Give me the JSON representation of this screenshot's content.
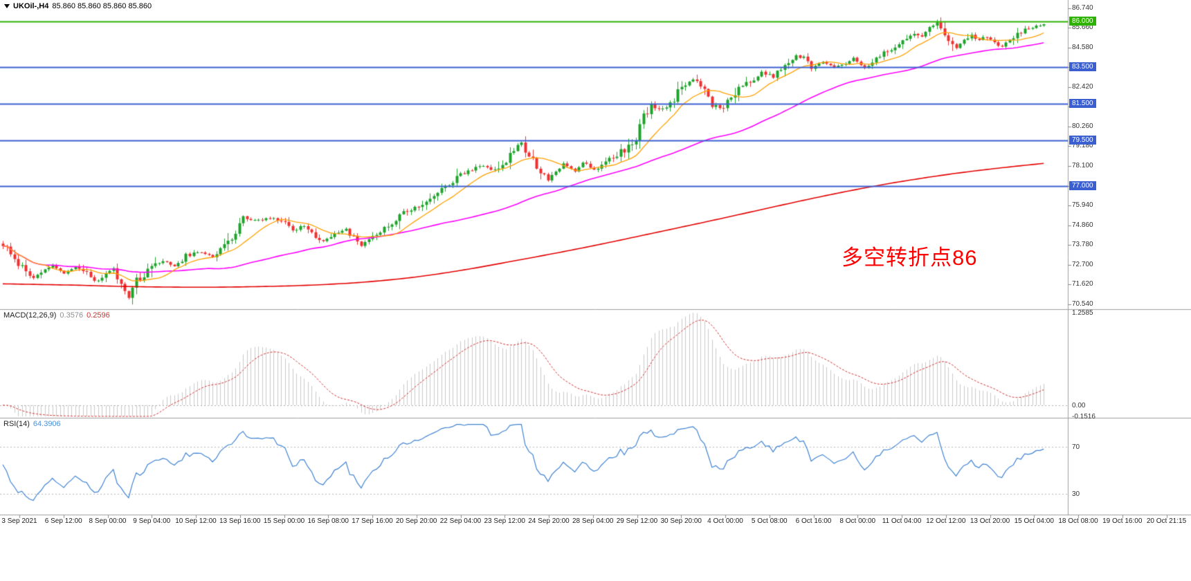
{
  "colors": {
    "up": "#1ea32b",
    "down": "#ef3030",
    "ma_fast": "#ffa000",
    "ma_mid": "#ff00ff",
    "ma_slow": "#e40000",
    "hline_blue": "#3b5fd0",
    "hline_green": "#2db200",
    "macd_hist": "#c9c9c9",
    "macd_signal": "#d23030",
    "rsi_line": "#3e82d2",
    "panel_divider": "#9e9e9e",
    "scale_text": "#333333",
    "annotation": "#ff0000",
    "label_box_blue": "#3b5fd0",
    "label_box_green": "#2db200"
  },
  "header": {
    "symbol": "UKOil-,H4",
    "quotes": "85.860 85.860 85.860 85.860"
  },
  "annotation": {
    "text": "多空转折点86"
  },
  "chart_data": [
    {
      "type": "candlestick",
      "title": "UKOil-,H4",
      "symbol": "UKOil-",
      "timeframe": "H4",
      "last_price": 85.86,
      "n_bars": 274,
      "ylim": [
        70.3,
        86.96
      ],
      "y_ticks": [
        "86.740",
        "85.660",
        "84.580",
        "83.500",
        "82.420",
        "81.340",
        "80.260",
        "79.180",
        "78.100",
        "77.020",
        "75.940",
        "74.860",
        "73.780",
        "72.700",
        "71.620",
        "70.540"
      ],
      "hlines": [
        {
          "price": 86.0,
          "label": "86.000",
          "color_key": "green"
        },
        {
          "price": 83.5,
          "label": "83.500",
          "color_key": "blue"
        },
        {
          "price": 81.5,
          "label": "81.500",
          "color_key": "blue"
        },
        {
          "price": 79.5,
          "label": "79.500",
          "color_key": "blue"
        },
        {
          "price": 77.0,
          "label": "77.000",
          "color_key": "blue"
        }
      ],
      "moving_averages": [
        {
          "name": "fast",
          "color_key": "ma_fast"
        },
        {
          "name": "medium",
          "color_key": "ma_mid"
        },
        {
          "name": "slow",
          "color_key": "ma_slow"
        }
      ],
      "price_path": [
        [
          0,
          73.85
        ],
        [
          2,
          73.4
        ],
        [
          4,
          72.7
        ],
        [
          6,
          72.25
        ],
        [
          8,
          71.95
        ],
        [
          10,
          72.3
        ],
        [
          13,
          72.65
        ],
        [
          16,
          72.2
        ],
        [
          19,
          72.55
        ],
        [
          21,
          72.4
        ],
        [
          24,
          71.75
        ],
        [
          27,
          72.15
        ],
        [
          29,
          72.5
        ],
        [
          31,
          71.6
        ],
        [
          33,
          70.85
        ],
        [
          35,
          71.8
        ],
        [
          38,
          72.4
        ],
        [
          42,
          72.9
        ],
        [
          45,
          72.6
        ],
        [
          48,
          73.15
        ],
        [
          52,
          73.4
        ],
        [
          55,
          73.15
        ],
        [
          58,
          73.85
        ],
        [
          61,
          74.3
        ],
        [
          63,
          75.35
        ],
        [
          65,
          75.1
        ],
        [
          68,
          75.2
        ],
        [
          71,
          75.3
        ],
        [
          73,
          75.1
        ],
        [
          76,
          74.55
        ],
        [
          79,
          74.85
        ],
        [
          82,
          74.25
        ],
        [
          84,
          73.95
        ],
        [
          87,
          74.4
        ],
        [
          90,
          74.6
        ],
        [
          92,
          74.15
        ],
        [
          94,
          73.75
        ],
        [
          97,
          74.35
        ],
        [
          100,
          74.7
        ],
        [
          103,
          75.15
        ],
        [
          105,
          75.5
        ],
        [
          108,
          75.85
        ],
        [
          111,
          76.15
        ],
        [
          115,
          76.9
        ],
        [
          118,
          77.3
        ],
        [
          121,
          77.7
        ],
        [
          124,
          78.0
        ],
        [
          126,
          78.1
        ],
        [
          129,
          77.85
        ],
        [
          132,
          78.4
        ],
        [
          134,
          79.05
        ],
        [
          136,
          79.3
        ],
        [
          138,
          78.7
        ],
        [
          140,
          77.95
        ],
        [
          143,
          77.35
        ],
        [
          145,
          77.9
        ],
        [
          147,
          78.2
        ],
        [
          150,
          77.8
        ],
        [
          152,
          78.3
        ],
        [
          155,
          77.9
        ],
        [
          157,
          78.1
        ],
        [
          160,
          78.55
        ],
        [
          163,
          79.0
        ],
        [
          166,
          79.5
        ],
        [
          168,
          80.9
        ],
        [
          170,
          81.4
        ],
        [
          173,
          81.15
        ],
        [
          176,
          81.8
        ],
        [
          178,
          82.55
        ],
        [
          181,
          82.9
        ],
        [
          184,
          82.25
        ],
        [
          186,
          81.4
        ],
        [
          189,
          81.2
        ],
        [
          191,
          82.0
        ],
        [
          194,
          82.5
        ],
        [
          197,
          82.9
        ],
        [
          199,
          83.2
        ],
        [
          202,
          83.0
        ],
        [
          205,
          83.6
        ],
        [
          208,
          84.2
        ],
        [
          210,
          84.0
        ],
        [
          212,
          83.45
        ],
        [
          215,
          83.8
        ],
        [
          218,
          83.5
        ],
        [
          220,
          83.6
        ],
        [
          223,
          84.0
        ],
        [
          226,
          83.5
        ],
        [
          229,
          83.9
        ],
        [
          231,
          84.3
        ],
        [
          234,
          84.65
        ],
        [
          237,
          85.0
        ],
        [
          239,
          85.35
        ],
        [
          241,
          85.3
        ],
        [
          243,
          85.7
        ],
        [
          245,
          85.9
        ],
        [
          247,
          85.2
        ],
        [
          250,
          84.6
        ],
        [
          252,
          84.95
        ],
        [
          254,
          85.3
        ],
        [
          256,
          84.95
        ],
        [
          258,
          85.2
        ],
        [
          260,
          84.85
        ],
        [
          262,
          84.6
        ],
        [
          264,
          85.0
        ],
        [
          266,
          85.3
        ],
        [
          268,
          85.55
        ],
        [
          271,
          85.75
        ],
        [
          273,
          85.86
        ]
      ],
      "ma_slow_path": [
        [
          0,
          71.65
        ],
        [
          20,
          71.5
        ],
        [
          45,
          71.45
        ],
        [
          70,
          71.55
        ],
        [
          90,
          71.8
        ],
        [
          107,
          72.25
        ],
        [
          124,
          72.9
        ],
        [
          142,
          73.6
        ],
        [
          160,
          74.4
        ],
        [
          178,
          75.2
        ],
        [
          195,
          76.0
        ],
        [
          213,
          76.8
        ],
        [
          231,
          77.45
        ],
        [
          249,
          77.95
        ],
        [
          273,
          78.45
        ]
      ],
      "x_labels": [
        "3 Sep 2021",
        "6 Sep 12:00",
        "8 Sep 00:00",
        "9 Sep 04:00",
        "10 Sep 12:00",
        "13 Sep 16:00",
        "15 Sep 00:00",
        "16 Sep 08:00",
        "17 Sep 16:00",
        "20 Sep 20:00",
        "22 Sep 04:00",
        "23 Sep 12:00",
        "24 Sep 20:00",
        "28 Sep 04:00",
        "29 Sep 12:00",
        "30 Sep 20:00",
        "4 Oct 00:00",
        "5 Oct 08:00",
        "6 Oct 16:00",
        "8 Oct 00:00",
        "11 Oct 04:00",
        "12 Oct 12:00",
        "13 Oct 20:00",
        "15 Oct 04:00",
        "18 Oct 08:00",
        "19 Oct 16:00",
        "20 Oct 21:15"
      ]
    },
    {
      "type": "macd",
      "label": "MACD(12,26,9)",
      "value_main": "0.3576",
      "value_signal": "0.2596",
      "params": [
        12,
        26,
        9
      ],
      "ylim": [
        -0.1516,
        1.2585
      ],
      "y_ticks": [
        {
          "label": "1.2585",
          "value": 1.2585
        },
        {
          "label": "0.00",
          "value": 0
        },
        {
          "label": "-0.1516",
          "value": -0.1516
        }
      ]
    },
    {
      "type": "rsi",
      "label": "RSI(14)",
      "value": "64.3906",
      "period": 14,
      "ylim": [
        15,
        90
      ],
      "levels": [
        {
          "label": "70",
          "value": 70
        },
        {
          "label": "30",
          "value": 30
        }
      ]
    }
  ]
}
